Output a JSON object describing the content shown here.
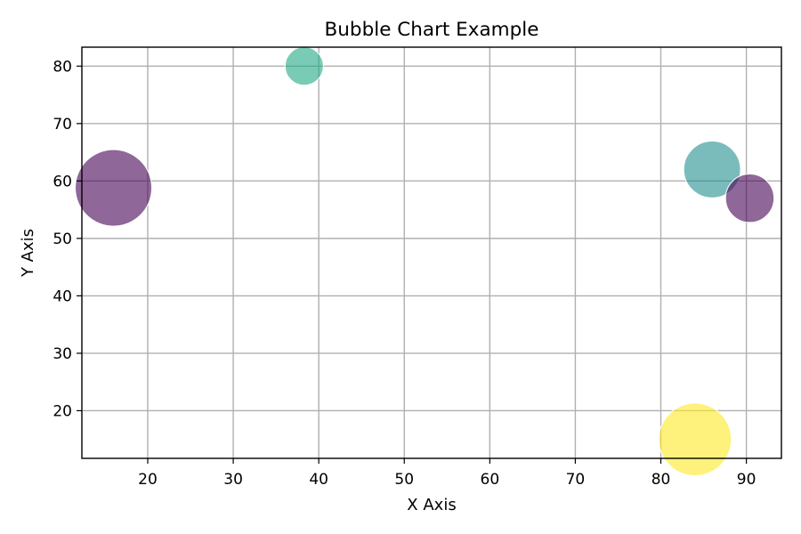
{
  "chart_data": {
    "type": "scatter",
    "subtype": "bubble",
    "title": "Bubble Chart Example",
    "xlabel": "X Axis",
    "ylabel": "Y Axis",
    "xlim": [
      12.3,
      94.1
    ],
    "ylim": [
      11.7,
      83.3
    ],
    "xticks": [
      20,
      30,
      40,
      50,
      60,
      70,
      80,
      90
    ],
    "yticks": [
      20,
      30,
      40,
      50,
      60,
      70,
      80
    ],
    "grid": true,
    "colormap": "viridis",
    "opacity": 0.6,
    "points": [
      {
        "x": 16.0,
        "y": 58.8,
        "size": 1.0,
        "color": "#440154"
      },
      {
        "x": 38.3,
        "y": 80.0,
        "size": 0.25,
        "color": "#22a884"
      },
      {
        "x": 86.0,
        "y": 62.0,
        "size": 0.55,
        "color": "#21908d"
      },
      {
        "x": 90.4,
        "y": 57.0,
        "size": 0.4,
        "color": "#440154"
      },
      {
        "x": 84.0,
        "y": 15.0,
        "size": 0.9,
        "color": "#fde725"
      }
    ]
  }
}
